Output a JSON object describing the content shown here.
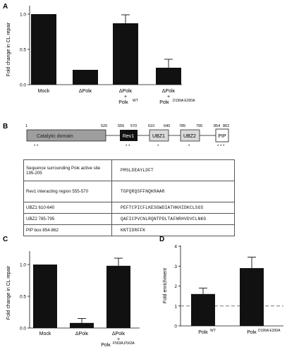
{
  "panels": {
    "A": "A",
    "B": "B",
    "C": "C",
    "D": "D"
  },
  "charts": [
    {
      "type": "bar",
      "panel": "A",
      "ylabel": "Fold change in CL repair",
      "yticks": [
        "0.0",
        "0.5",
        "1.0"
      ],
      "ylim": [
        0,
        1.1
      ],
      "categories": [
        "Mock",
        "ΔPolκ",
        "ΔPolκ + Polκ^WT",
        "ΔPolκ + Polκ^D199A E200A"
      ],
      "values": [
        1.0,
        0.21,
        0.87,
        0.24
      ],
      "errors": [
        0,
        0,
        0.12,
        0.12
      ]
    },
    {
      "type": "bar",
      "panel": "C",
      "ylabel": "Fold change in CL repair",
      "yticks": [
        "0.0",
        "0.5",
        "1.0"
      ],
      "ylim": [
        0,
        1.2
      ],
      "categories": [
        "Mock",
        "ΔPolκ",
        "ΔPolκ + Polκ^F563A,F563A"
      ],
      "values": [
        1.0,
        0.08,
        0.98
      ],
      "errors": [
        0,
        0.07,
        0.12
      ]
    },
    {
      "type": "bar",
      "panel": "D",
      "ylabel": "Fold enrichment",
      "yticks": [
        "0",
        "1",
        "2",
        "3",
        "4"
      ],
      "ylim": [
        0,
        4
      ],
      "categories": [
        "Polκ^WT",
        "Polκ^D199A E200A"
      ],
      "values": [
        1.6,
        2.9
      ],
      "errors": [
        0.3,
        0.55
      ],
      "reference_line": 1
    }
  ],
  "chart_A": {
    "ylabel": "Fold change in CL repair",
    "cat1": "Mock",
    "cat2": "ΔPolκ",
    "cat3": "ΔPolκ",
    "cat3_plus": "+",
    "cat3_sub": "Polκ",
    "cat3_sup": "WT",
    "cat4": "ΔPolκ",
    "cat4_plus": "+",
    "cat4_sub": "Polκ",
    "cat4_sup": "D199A E200A"
  },
  "chart_C": {
    "ylabel": "Fold change in CL repair",
    "cat1": "Mock",
    "cat2": "ΔPolκ",
    "cat3": "ΔPolκ",
    "cat3_plus": "+",
    "cat3_sub": "Polκ",
    "cat3_sup": "F563A,F563A"
  },
  "chart_D": {
    "ylabel": "Fold enrichment",
    "cat1": "Polκ",
    "cat1_sup": "WT",
    "cat2": "Polκ",
    "cat2_sup": "D199A E200A"
  },
  "domain_map": {
    "ticks": [
      "1",
      "520",
      "555",
      "570",
      "610",
      "640",
      "785",
      "795",
      "854",
      "862"
    ],
    "domains": {
      "catalytic": "Catalytic domain",
      "rev1": "Rev1",
      "ubz1": "UBZ1",
      "ubz2": "UBZ2",
      "pip": "PIP"
    },
    "marks": {
      "catalytic": "* *",
      "rev1": "* *",
      "ubz1": "*",
      "ubz2": "*",
      "pip": "* * *"
    }
  },
  "sequence_table": [
    {
      "region": "Sequence surrounding Polκ active site 195-205",
      "sequence": "PMSLDEAYLDFT"
    },
    {
      "region": "Rev1 interacting region 555-570",
      "sequence": "TGPQRQSFFNQKRAAR"
    },
    {
      "region": "UBZ1 610-640",
      "sequence": "PEFTCPICFLKESGWDIATHKHIDKCLSGS"
    },
    {
      "region": "UBZ2 785-795",
      "sequence": "QAFICPVCNLRQNTPDLTAFNRHVDVCLNKG"
    },
    {
      "region": "PIP box 854-862",
      "sequence": "KNTIDRFFK"
    }
  ],
  "colors": {
    "bar": "#111111",
    "catalytic": "#9e9e9e",
    "rev1": "#111111",
    "ubz": "#d9d9d9",
    "pip": "#ffffff",
    "refline": "#777777"
  }
}
